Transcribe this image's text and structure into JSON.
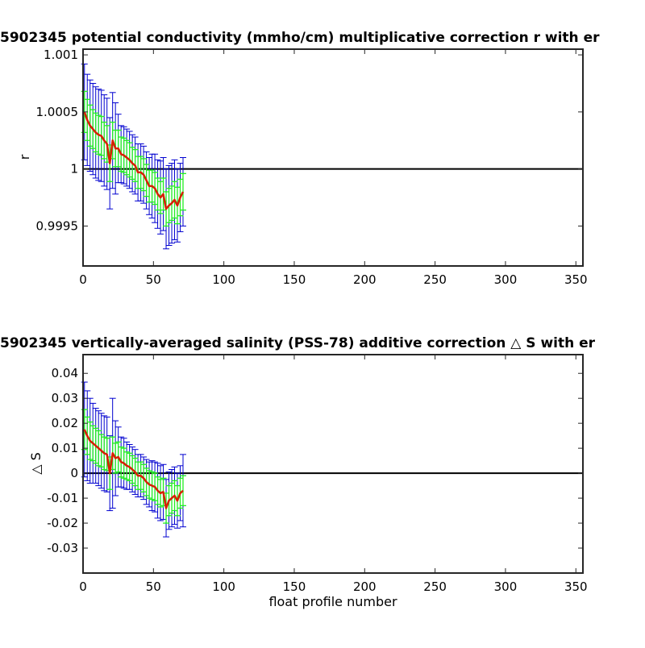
{
  "chart_data": [
    {
      "type": "line",
      "title": "5902345 potential conductivity (mmho/cm) multiplicative correction r with er",
      "xlabel": "",
      "ylabel": "r",
      "xlim": [
        0,
        355
      ],
      "ylim": [
        0.99915,
        1.00105
      ],
      "xticks": [
        0,
        50,
        100,
        150,
        200,
        250,
        300,
        350
      ],
      "xtick_labels": [
        "0",
        "50",
        "100",
        "150",
        "200",
        "250",
        "300",
        "350"
      ],
      "yticks": [
        0.9995,
        1.0,
        1.0005,
        1.001
      ],
      "ytick_labels": [
        "0.9995",
        "1",
        "1.0005",
        "1.001"
      ],
      "reference_line": 1.0,
      "grid": false,
      "colors": {
        "correction": "#d62000",
        "error_bars_outer": "#0000d0",
        "error_bars_inner": "#22ee22",
        "reference": "#000000"
      },
      "series": [
        {
          "x": [
            1,
            3,
            5,
            7,
            9,
            11,
            13,
            15,
            17,
            19,
            21,
            23,
            25,
            27,
            29,
            31,
            33,
            35,
            37,
            39,
            41,
            43,
            45,
            47,
            49,
            51,
            53,
            55,
            57,
            59,
            61,
            63,
            65,
            67,
            69,
            71
          ],
          "y": [
            1.0005,
            1.00043,
            1.00038,
            1.00035,
            1.00032,
            1.0003,
            1.00029,
            1.00025,
            1.00022,
            1.00005,
            1.00025,
            1.00018,
            1.00018,
            1.00013,
            1.00012,
            1.0001,
            1.00008,
            1.00005,
            1.00003,
            0.99997,
            0.99997,
            0.99995,
            0.9999,
            0.99985,
            0.99985,
            0.99983,
            0.99978,
            0.99975,
            0.99978,
            0.99965,
            0.99968,
            0.9997,
            0.99973,
            0.99968,
            0.99975,
            0.9998
          ],
          "err_outer": [
            0.00042,
            0.0004,
            0.0004,
            0.0004,
            0.0004,
            0.0004,
            0.0004,
            0.0004,
            0.0004,
            0.0004,
            0.00042,
            0.0004,
            0.0003,
            0.00025,
            0.00025,
            0.00025,
            0.00025,
            0.00025,
            0.00025,
            0.00025,
            0.00025,
            0.00025,
            0.00025,
            0.00025,
            0.00028,
            0.0003,
            0.0003,
            0.00032,
            0.00032,
            0.00035,
            0.00035,
            0.00035,
            0.00035,
            0.00032,
            0.0003,
            0.0003
          ],
          "err_inner": [
            0.00018,
            0.00018,
            0.00018,
            0.00017,
            0.00017,
            0.00017,
            0.00017,
            0.00016,
            0.00016,
            0.00016,
            0.00016,
            0.00016,
            0.00016,
            0.00015,
            0.00015,
            0.00015,
            0.00015,
            0.00014,
            0.00014,
            0.00014,
            0.00014,
            0.00014,
            0.00014,
            0.00014,
            0.00014,
            0.00014,
            0.00014,
            0.00014,
            0.00014,
            0.00015,
            0.00015,
            0.00015,
            0.00016,
            0.00016,
            0.00016,
            0.00016
          ]
        }
      ]
    },
    {
      "type": "line",
      "title": "5902345 vertically-averaged salinity (PSS-78) additive correction △ S with er",
      "xlabel": "float profile number",
      "ylabel": "△ S",
      "xlim": [
        0,
        355
      ],
      "ylim": [
        -0.04,
        0.0475
      ],
      "xticks": [
        0,
        50,
        100,
        150,
        200,
        250,
        300,
        350
      ],
      "xtick_labels": [
        "0",
        "50",
        "100",
        "150",
        "200",
        "250",
        "300",
        "350"
      ],
      "yticks": [
        -0.03,
        -0.02,
        -0.01,
        0,
        0.01,
        0.02,
        0.03,
        0.04
      ],
      "ytick_labels": [
        "-0.03",
        "-0.02",
        "-0.01",
        "0",
        "0.01",
        "0.02",
        "0.03",
        "0.04"
      ],
      "reference_line": 0,
      "grid": false,
      "colors": {
        "correction": "#d62000",
        "error_bars_outer": "#0000d0",
        "error_bars_inner": "#22ee22",
        "reference": "#000000"
      },
      "series": [
        {
          "x": [
            1,
            3,
            5,
            7,
            9,
            11,
            13,
            15,
            17,
            19,
            21,
            23,
            25,
            27,
            29,
            31,
            33,
            35,
            37,
            39,
            41,
            43,
            45,
            47,
            49,
            51,
            53,
            55,
            57,
            59,
            61,
            63,
            65,
            67,
            69,
            71
          ],
          "y": [
            0.0175,
            0.015,
            0.013,
            0.012,
            0.011,
            0.01,
            0.009,
            0.008,
            0.0075,
            0.0,
            0.008,
            0.006,
            0.0065,
            0.0045,
            0.004,
            0.003,
            0.0025,
            0.0015,
            0.0005,
            -0.001,
            -0.001,
            -0.002,
            -0.0035,
            -0.0045,
            -0.005,
            -0.0055,
            -0.007,
            -0.008,
            -0.0075,
            -0.014,
            -0.011,
            -0.01,
            -0.009,
            -0.011,
            -0.008,
            -0.007
          ],
          "err_outer": [
            0.019,
            0.018,
            0.017,
            0.016,
            0.015,
            0.015,
            0.015,
            0.015,
            0.015,
            0.015,
            0.022,
            0.015,
            0.012,
            0.01,
            0.01,
            0.0095,
            0.009,
            0.009,
            0.009,
            0.0085,
            0.0085,
            0.0085,
            0.009,
            0.009,
            0.01,
            0.01,
            0.011,
            0.011,
            0.011,
            0.0115,
            0.0115,
            0.0115,
            0.0115,
            0.011,
            0.011,
            0.0145
          ],
          "err_inner": [
            0.008,
            0.0075,
            0.0075,
            0.007,
            0.007,
            0.007,
            0.0065,
            0.0065,
            0.0065,
            0.0065,
            0.0065,
            0.006,
            0.006,
            0.006,
            0.006,
            0.0055,
            0.0055,
            0.0055,
            0.0055,
            0.0055,
            0.0055,
            0.0055,
            0.0055,
            0.0055,
            0.0055,
            0.0055,
            0.0055,
            0.0055,
            0.0055,
            0.006,
            0.006,
            0.006,
            0.006,
            0.006,
            0.006,
            0.006
          ]
        }
      ]
    }
  ]
}
